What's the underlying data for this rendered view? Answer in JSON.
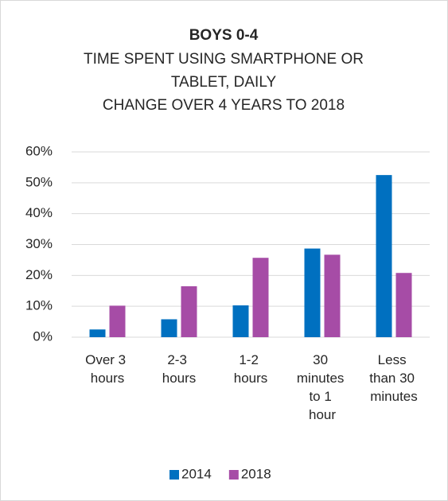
{
  "chart_data": {
    "type": "bar",
    "title": "BOYS 0-4",
    "subtitle": [
      "TIME SPENT USING SMARTPHONE OR",
      "TABLET, DAILY",
      "CHANGE OVER 4 YEARS TO 2018"
    ],
    "categories": [
      "Over 3 hours",
      "2-3 hours",
      "1-2 hours",
      "30 minutes to 1 hour",
      "Less than 30 minutes"
    ],
    "series": [
      {
        "name": "2014",
        "color": "#0070c0",
        "values": [
          2.5,
          5.8,
          10.3,
          28.7,
          52.5
        ]
      },
      {
        "name": "2018",
        "color": "#a64ca6",
        "values": [
          10.2,
          16.5,
          25.7,
          26.7,
          20.8
        ]
      }
    ],
    "ylim": [
      0,
      60
    ],
    "yticks": [
      {
        "value": 0,
        "label": "0%"
      },
      {
        "value": 10,
        "label": "10%"
      },
      {
        "value": 20,
        "label": "20%"
      },
      {
        "value": 30,
        "label": "30%"
      },
      {
        "value": 40,
        "label": "40%"
      },
      {
        "value": 50,
        "label": "50%"
      },
      {
        "value": 60,
        "label": "60%"
      }
    ],
    "grid": true,
    "legend": "bottom"
  }
}
